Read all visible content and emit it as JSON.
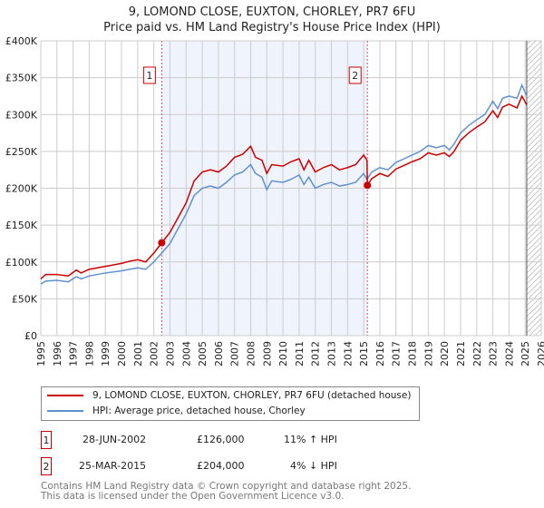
{
  "chart_data": {
    "type": "line",
    "title": "9, LOMOND CLOSE, EUXTON, CHORLEY, PR7 6FU",
    "subtitle": "Price paid vs. HM Land Registry's House Price Index (HPI)",
    "xlim": [
      1995,
      2026
    ],
    "ylim": [
      0,
      400000
    ],
    "y_ticks": [
      {
        "v": 0,
        "label": "£0"
      },
      {
        "v": 50000,
        "label": "£50K"
      },
      {
        "v": 100000,
        "label": "£100K"
      },
      {
        "v": 150000,
        "label": "£150K"
      },
      {
        "v": 200000,
        "label": "£200K"
      },
      {
        "v": 250000,
        "label": "£250K"
      },
      {
        "v": 300000,
        "label": "£300K"
      },
      {
        "v": 350000,
        "label": "£350K"
      },
      {
        "v": 400000,
        "label": "£400K"
      }
    ],
    "x_ticks": [
      "1995",
      "1996",
      "1997",
      "1998",
      "1999",
      "2000",
      "2001",
      "2002",
      "2003",
      "2004",
      "2005",
      "2006",
      "2007",
      "2008",
      "2009",
      "2010",
      "2011",
      "2012",
      "2013",
      "2014",
      "2015",
      "2016",
      "2017",
      "2018",
      "2019",
      "2020",
      "2021",
      "2022",
      "2023",
      "2024",
      "2025",
      "2026"
    ],
    "grid": true,
    "shaded_range": [
      2002.49,
      2015.23
    ],
    "future_hatch_from": 2025.1,
    "series": [
      {
        "name": "9, LOMOND CLOSE, EUXTON, CHORLEY, PR7 6FU (detached house)",
        "color": "#cc0000",
        "x": [
          1995,
          1995.3,
          1996,
          1996.7,
          1997.2,
          1997.5,
          1998,
          1999,
          2000,
          2000.5,
          2001,
          2001.5,
          2002,
          2002.49,
          2003,
          2003.5,
          2004,
          2004.5,
          2005,
          2005.5,
          2006,
          2006.5,
          2007,
          2007.5,
          2008,
          2008.3,
          2008.7,
          2009,
          2009.3,
          2010,
          2010.5,
          2011,
          2011.3,
          2011.6,
          2012,
          2012.5,
          2013,
          2013.5,
          2014,
          2014.5,
          2015,
          2015.2,
          2015.23,
          2015.5,
          2016,
          2016.5,
          2017,
          2017.5,
          2018,
          2018.5,
          2019,
          2019.5,
          2020,
          2020.3,
          2020.6,
          2021,
          2021.5,
          2022,
          2022.5,
          2023,
          2023.3,
          2023.6,
          2024,
          2024.5,
          2024.8,
          2025.1
        ],
        "values": [
          77000,
          83000,
          83000,
          81000,
          89000,
          85000,
          90000,
          94000,
          98000,
          101000,
          103000,
          100000,
          112000,
          126000,
          140000,
          160000,
          180000,
          210000,
          222000,
          225000,
          222000,
          230000,
          242000,
          246000,
          257000,
          242000,
          238000,
          220000,
          232000,
          230000,
          236000,
          240000,
          225000,
          238000,
          222000,
          228000,
          232000,
          225000,
          228000,
          232000,
          245000,
          238000,
          204000,
          213000,
          220000,
          216000,
          226000,
          231000,
          236000,
          240000,
          248000,
          245000,
          248000,
          243000,
          250000,
          265000,
          275000,
          283000,
          290000,
          305000,
          296000,
          310000,
          314000,
          309000,
          325000,
          313000
        ]
      },
      {
        "name": "HPI: Average price, detached house, Chorley",
        "color": "#6090d0",
        "x": [
          1995,
          1995.3,
          1996,
          1996.7,
          1997.2,
          1997.5,
          1998,
          1999,
          2000,
          2000.5,
          2001,
          2001.5,
          2002,
          2002.49,
          2003,
          2003.5,
          2004,
          2004.5,
          2005,
          2005.5,
          2006,
          2006.5,
          2007,
          2007.5,
          2008,
          2008.3,
          2008.7,
          2009,
          2009.3,
          2010,
          2010.5,
          2011,
          2011.3,
          2011.6,
          2012,
          2012.5,
          2013,
          2013.5,
          2014,
          2014.5,
          2015,
          2015.2,
          2015.5,
          2016,
          2016.5,
          2017,
          2017.5,
          2018,
          2018.5,
          2019,
          2019.5,
          2020,
          2020.3,
          2020.6,
          2021,
          2021.5,
          2022,
          2022.5,
          2023,
          2023.3,
          2023.6,
          2024,
          2024.5,
          2024.8,
          2025.1
        ],
        "values": [
          70000,
          74000,
          75000,
          73000,
          80000,
          77000,
          81000,
          85000,
          88000,
          90000,
          92000,
          90000,
          100000,
          112000,
          125000,
          145000,
          165000,
          190000,
          200000,
          203000,
          200000,
          208000,
          218000,
          222000,
          232000,
          220000,
          215000,
          198000,
          210000,
          208000,
          212000,
          218000,
          205000,
          215000,
          200000,
          205000,
          208000,
          203000,
          205000,
          208000,
          220000,
          212000,
          222000,
          228000,
          225000,
          235000,
          240000,
          245000,
          250000,
          258000,
          255000,
          258000,
          252000,
          260000,
          275000,
          285000,
          293000,
          300000,
          318000,
          308000,
          322000,
          325000,
          322000,
          340000,
          325000
        ]
      }
    ],
    "sales": [
      {
        "id": "1",
        "x": 2002.49,
        "value": 126000,
        "date": "28-JUN-2002",
        "price": "£126,000",
        "hpi": "11% ↑ HPI"
      },
      {
        "id": "2",
        "x": 2015.23,
        "value": 204000,
        "date": "25-MAR-2015",
        "price": "£204,000",
        "hpi": "4% ↓ HPI"
      }
    ]
  },
  "footer": {
    "line1": "Contains HM Land Registry data © Crown copyright and database right 2025.",
    "line2": "This data is licensed under the Open Government Licence v3.0."
  }
}
